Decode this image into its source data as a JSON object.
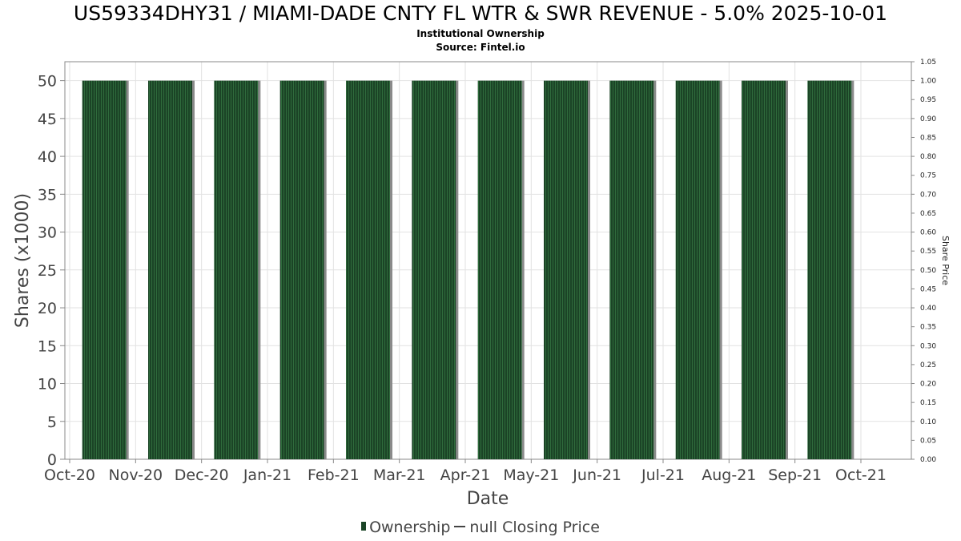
{
  "title": "US59334DHY31 / MIAMI-DADE CNTY FL WTR & SWR REVENUE - 5.0% 2025-10-01",
  "subtitle": "Institutional Ownership",
  "source": "Source: Fintel.io",
  "legend": {
    "ownership_label": "Ownership",
    "price_label": "null Closing Price"
  },
  "colors": {
    "bar": "#1b4426",
    "bar_stripe": "#2f6b3c",
    "bar_shadow": "#8a8a8a",
    "grid": "#e2e2e2",
    "axis": "#888888",
    "text": "#444444"
  },
  "chart_data": {
    "type": "bar",
    "title": "US59334DHY31 / MIAMI-DADE CNTY FL WTR & SWR REVENUE - 5.0% 2025-10-01",
    "xlabel": "Date",
    "ylabel": "Shares (x1000)",
    "y2label": "Share Price",
    "categories": [
      "Nov-20",
      "Dec-20",
      "Jan-21",
      "Feb-21",
      "Mar-21",
      "Apr-21",
      "May-21",
      "Jun-21",
      "Jul-21",
      "Aug-21",
      "Sep-21",
      "Oct-21"
    ],
    "x_tick_labels": [
      "Oct-20",
      "Nov-20",
      "Dec-20",
      "Jan-21",
      "Feb-21",
      "Mar-21",
      "Apr-21",
      "May-21",
      "Jun-21",
      "Jul-21",
      "Aug-21",
      "Sep-21",
      "Oct-21"
    ],
    "series": [
      {
        "name": "Ownership",
        "values": [
          50,
          50,
          50,
          50,
          50,
          50,
          50,
          50,
          50,
          50,
          50,
          50
        ]
      }
    ],
    "ylim": [
      0,
      52.5
    ],
    "y_ticks": [
      0,
      5,
      10,
      15,
      20,
      25,
      30,
      35,
      40,
      45,
      50
    ],
    "y2lim": [
      0,
      1.05
    ],
    "y2_ticks": [
      "0.00",
      "0.05",
      "0.10",
      "0.15",
      "0.20",
      "0.25",
      "0.30",
      "0.35",
      "0.40",
      "0.45",
      "0.50",
      "0.55",
      "0.60",
      "0.65",
      "0.70",
      "0.75",
      "0.80",
      "0.85",
      "0.90",
      "0.95",
      "1.00",
      "1.05"
    ],
    "grid": true,
    "legend_position": "bottom"
  }
}
